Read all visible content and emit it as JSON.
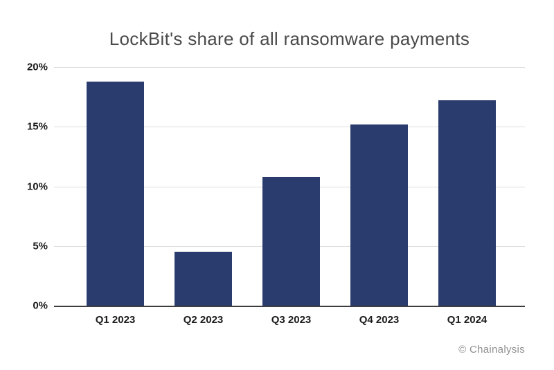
{
  "figure": {
    "attribution": "© Chainalysis"
  },
  "colors": {
    "background": "#ffffff",
    "bar": "#2a3b6e",
    "grid": "#dcdcdc",
    "axis": "#3d3d3d",
    "title_text": "#4a4a4a",
    "tick_text": "#1b1b1b",
    "attribution_text": "#8f8f8f"
  },
  "chart_data": {
    "type": "bar",
    "title": "LockBit's share of all ransomware payments",
    "categories": [
      "Q1 2023",
      "Q2 2023",
      "Q3 2023",
      "Q4 2023",
      "Q1 2024"
    ],
    "values": [
      18.8,
      4.5,
      10.8,
      15.2,
      17.2
    ],
    "unit": "%",
    "xlabel": "",
    "ylabel": "",
    "ylim": [
      0,
      20
    ],
    "yticks": [
      0,
      5,
      10,
      15,
      20
    ],
    "ytick_labels": [
      "0%",
      "5%",
      "10%",
      "15%",
      "20%"
    ],
    "grid": "horizontal-light",
    "legend": "none"
  }
}
